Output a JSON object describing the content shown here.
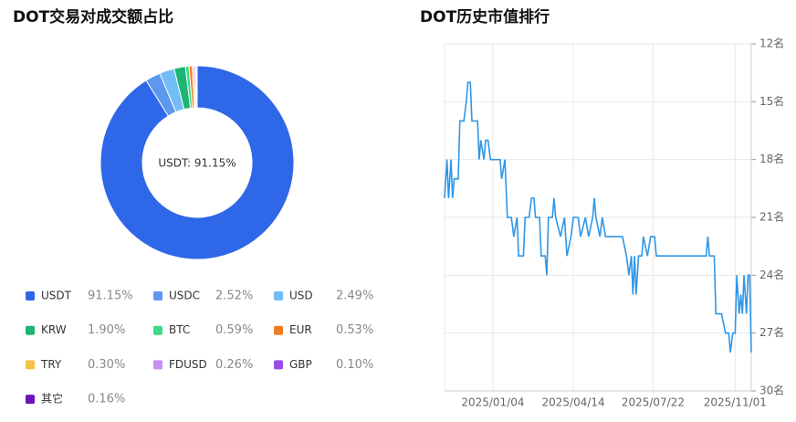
{
  "chart_data": [
    {
      "type": "donut",
      "title": "DOT交易对成交额占比",
      "center_label": "USDT: 91.15%",
      "categories": [
        "USDT",
        "USDC",
        "USD",
        "KRW",
        "BTC",
        "EUR",
        "TRY",
        "FDUSD",
        "GBP",
        "其它"
      ],
      "values": [
        91.15,
        2.52,
        2.49,
        1.9,
        0.59,
        0.53,
        0.3,
        0.26,
        0.1,
        0.16
      ],
      "value_labels": [
        "91.15%",
        "2.52%",
        "2.49%",
        "1.90%",
        "0.59%",
        "0.53%",
        "0.30%",
        "0.26%",
        "0.10%",
        "0.16%"
      ],
      "colors": [
        "#2f67e9",
        "#5b98ee",
        "#73bdf6",
        "#1db574",
        "#3ed88a",
        "#f07b22",
        "#f5c24a",
        "#c690f5",
        "#9a4ce6",
        "#6c14b7"
      ]
    },
    {
      "type": "line",
      "title": "DOT历史市值排行",
      "inverted_y": true,
      "grid": true,
      "x": [
        "2024/11/05",
        "2024/11/08",
        "2024/11/10",
        "2024/11/13",
        "2024/11/15",
        "2024/11/17",
        "2024/11/22",
        "2024/11/24",
        "2024/11/29",
        "2024/12/02",
        "2024/12/04",
        "2024/12/07",
        "2024/12/09",
        "2024/12/16",
        "2024/12/18",
        "2024/12/20",
        "2024/12/24",
        "2024/12/26",
        "2024/12/29",
        "2025/01/01",
        "2025/01/13",
        "2025/01/15",
        "2025/01/19",
        "2025/01/22",
        "2025/01/27",
        "2025/01/30",
        "2025/02/03",
        "2025/02/05",
        "2025/02/11",
        "2025/02/13",
        "2025/02/18",
        "2025/02/21",
        "2025/02/24",
        "2025/02/26",
        "2025/03/03",
        "2025/03/05",
        "2025/03/10",
        "2025/03/12",
        "2025/03/14",
        "2025/03/19",
        "2025/03/21",
        "2025/03/23",
        "2025/03/29",
        "2025/04/03",
        "2025/04/06",
        "2025/04/11",
        "2025/04/14",
        "2025/04/20",
        "2025/04/23",
        "2025/04/29",
        "2025/05/03",
        "2025/05/08",
        "2025/05/10",
        "2025/05/12",
        "2025/05/17",
        "2025/05/20",
        "2025/05/24",
        "2025/06/14",
        "2025/06/19",
        "2025/06/22",
        "2025/06/25",
        "2025/06/27",
        "2025/06/29",
        "2025/07/01",
        "2025/07/04",
        "2025/07/08",
        "2025/07/10",
        "2025/07/15",
        "2025/07/19",
        "2025/07/24",
        "2025/07/26",
        "2025/09/11",
        "2025/09/26",
        "2025/09/28",
        "2025/09/30",
        "2025/10/06",
        "2025/10/08",
        "2025/10/15",
        "2025/10/20",
        "2025/10/24",
        "2025/10/26",
        "2025/10/29",
        "2025/11/01",
        "2025/11/03",
        "2025/11/06",
        "2025/11/08",
        "2025/11/10",
        "2025/11/12",
        "2025/11/15",
        "2025/11/17",
        "2025/11/19",
        "2025/11/21"
      ],
      "series": [
        {
          "color": "#2f96e6",
          "values": [
            20,
            18,
            20,
            18,
            20,
            19,
            19,
            16,
            16,
            15,
            14,
            14,
            16,
            16,
            18,
            17,
            18,
            17,
            17,
            18,
            18,
            19,
            18,
            21,
            21,
            22,
            21,
            23,
            23,
            21,
            21,
            20,
            20,
            21,
            21,
            23,
            23,
            24,
            21,
            21,
            20,
            21,
            22,
            21,
            23,
            22,
            21,
            21,
            22,
            21,
            22,
            21,
            20,
            21,
            22,
            21,
            22,
            22,
            23,
            24,
            23,
            25,
            23,
            25,
            23,
            23,
            22,
            23,
            22,
            22,
            23,
            23,
            23,
            22,
            23,
            23,
            26,
            26,
            27,
            27,
            28,
            27,
            27,
            24,
            26,
            25,
            26,
            24,
            26,
            24,
            24,
            28
          ]
        }
      ],
      "xlim": [
        "2024/11/05",
        "2025/11/21"
      ],
      "xticks": [
        "2025/01/04",
        "2025/04/14",
        "2025/07/22",
        "2025/11/01"
      ],
      "ylim": [
        12,
        30
      ],
      "yticks": [
        {
          "value": 12,
          "label": "12名"
        },
        {
          "value": 15,
          "label": "15名"
        },
        {
          "value": 18,
          "label": "18名"
        },
        {
          "value": 21,
          "label": "21名"
        },
        {
          "value": 24,
          "label": "24名"
        },
        {
          "value": 27,
          "label": "27名"
        },
        {
          "value": 30,
          "label": "30名"
        }
      ]
    }
  ]
}
